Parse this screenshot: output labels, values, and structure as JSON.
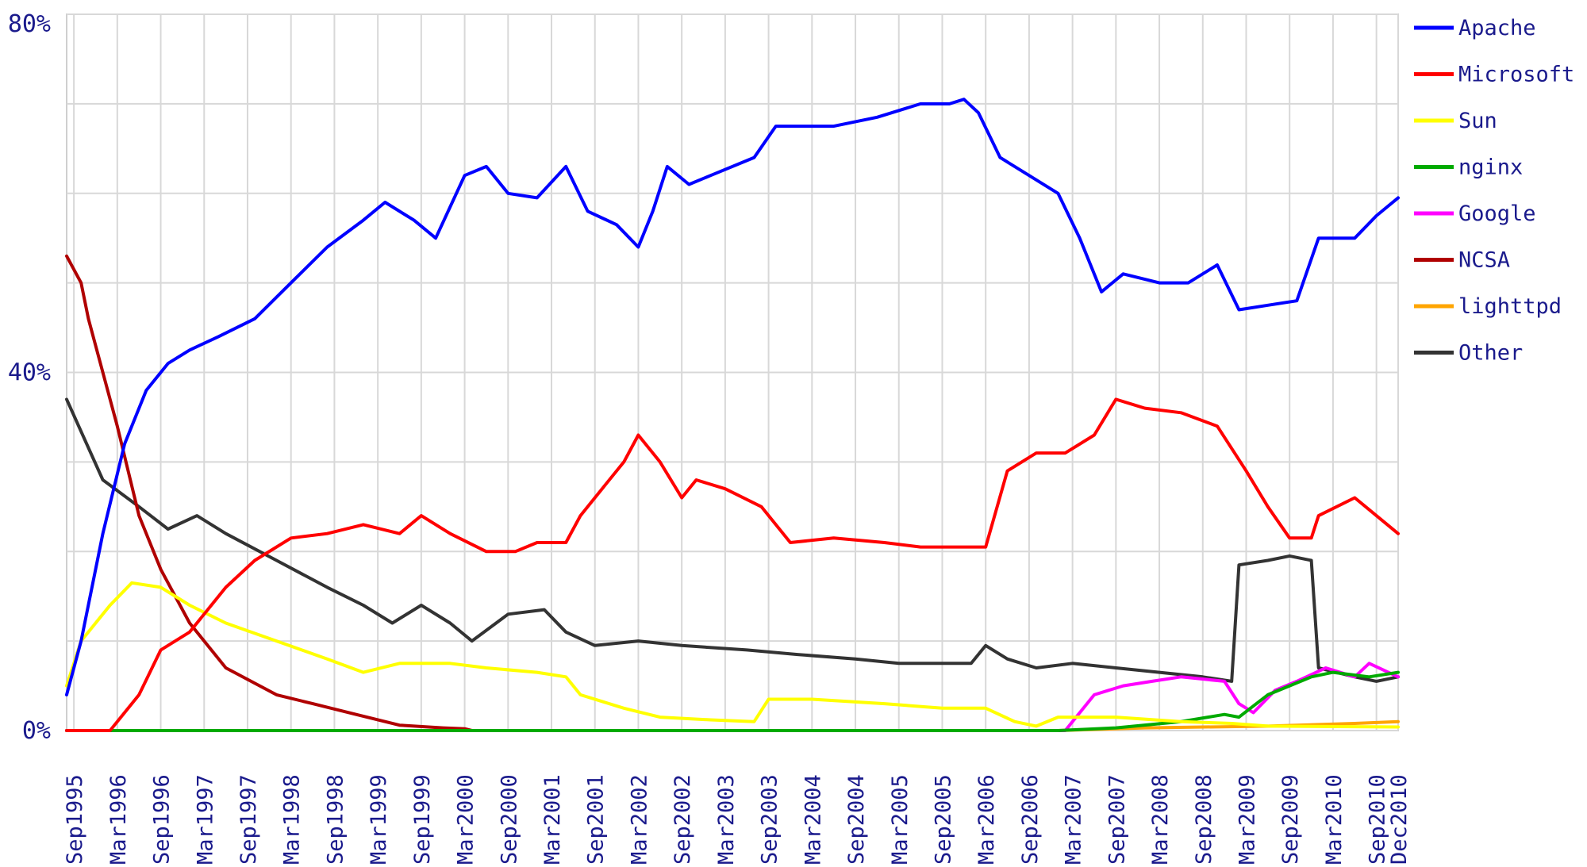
{
  "chart_data": {
    "type": "line",
    "title": "",
    "xlabel": "",
    "ylabel": "",
    "ylim": [
      0,
      80
    ],
    "y_ticks": [
      {
        "value": 0,
        "label": "0%"
      },
      {
        "value": 40,
        "label": "40%"
      },
      {
        "value": 80,
        "label": "80%"
      }
    ],
    "x_range": [
      "1995-08",
      "2010-12"
    ],
    "x_tick_labels": [
      {
        "date": "1995-09",
        "label": "Sep1995"
      },
      {
        "date": "1996-03",
        "label": "Mar1996"
      },
      {
        "date": "1996-09",
        "label": "Sep1996"
      },
      {
        "date": "1997-03",
        "label": "Mar1997"
      },
      {
        "date": "1997-09",
        "label": "Sep1997"
      },
      {
        "date": "1998-03",
        "label": "Mar1998"
      },
      {
        "date": "1998-09",
        "label": "Sep1998"
      },
      {
        "date": "1999-03",
        "label": "Mar1999"
      },
      {
        "date": "1999-09",
        "label": "Sep1999"
      },
      {
        "date": "2000-03",
        "label": "Mar2000"
      },
      {
        "date": "2000-09",
        "label": "Sep2000"
      },
      {
        "date": "2001-03",
        "label": "Mar2001"
      },
      {
        "date": "2001-09",
        "label": "Sep2001"
      },
      {
        "date": "2002-03",
        "label": "Mar2002"
      },
      {
        "date": "2002-09",
        "label": "Sep2002"
      },
      {
        "date": "2003-03",
        "label": "Mar2003"
      },
      {
        "date": "2003-09",
        "label": "Sep2003"
      },
      {
        "date": "2004-03",
        "label": "Mar2004"
      },
      {
        "date": "2004-09",
        "label": "Sep2004"
      },
      {
        "date": "2005-03",
        "label": "Mar2005"
      },
      {
        "date": "2005-09",
        "label": "Sep2005"
      },
      {
        "date": "2006-03",
        "label": "Mar2006"
      },
      {
        "date": "2006-09",
        "label": "Sep2006"
      },
      {
        "date": "2007-03",
        "label": "Mar2007"
      },
      {
        "date": "2007-09",
        "label": "Sep2007"
      },
      {
        "date": "2008-03",
        "label": "Mar2008"
      },
      {
        "date": "2008-09",
        "label": "Sep2008"
      },
      {
        "date": "2009-03",
        "label": "Mar2009"
      },
      {
        "date": "2009-09",
        "label": "Sep2009"
      },
      {
        "date": "2010-03",
        "label": "Mar2010"
      },
      {
        "date": "2010-09",
        "label": "Sep2010"
      },
      {
        "date": "2010-12",
        "label": "Dec2010"
      }
    ],
    "grid": true,
    "legend_position": "right",
    "series": [
      {
        "name": "Apache",
        "color": "#0000ff",
        "points": [
          [
            "1995-08",
            4
          ],
          [
            "1995-10",
            10
          ],
          [
            "1996-01",
            22
          ],
          [
            "1996-04",
            32
          ],
          [
            "1996-07",
            38
          ],
          [
            "1996-10",
            41
          ],
          [
            "1997-01",
            42.5
          ],
          [
            "1997-05",
            44
          ],
          [
            "1997-10",
            46
          ],
          [
            "1998-03",
            50
          ],
          [
            "1998-08",
            54
          ],
          [
            "1999-01",
            57
          ],
          [
            "1999-04",
            59
          ],
          [
            "1999-08",
            57
          ],
          [
            "1999-11",
            55
          ],
          [
            "2000-03",
            62
          ],
          [
            "2000-06",
            63
          ],
          [
            "2000-09",
            60
          ],
          [
            "2001-01",
            59.5
          ],
          [
            "2001-05",
            63
          ],
          [
            "2001-08",
            58
          ],
          [
            "2001-12",
            56.5
          ],
          [
            "2002-03",
            54
          ],
          [
            "2002-05",
            58
          ],
          [
            "2002-07",
            63
          ],
          [
            "2002-10",
            61
          ],
          [
            "2003-01",
            62
          ],
          [
            "2003-07",
            64
          ],
          [
            "2003-10",
            67.5
          ],
          [
            "2004-06",
            67.5
          ],
          [
            "2004-12",
            68.5
          ],
          [
            "2005-06",
            70
          ],
          [
            "2005-10",
            70
          ],
          [
            "2005-12",
            70.5
          ],
          [
            "2006-02",
            69
          ],
          [
            "2006-05",
            64
          ],
          [
            "2006-09",
            62
          ],
          [
            "2007-01",
            60
          ],
          [
            "2007-04",
            55
          ],
          [
            "2007-07",
            49
          ],
          [
            "2007-10",
            51
          ],
          [
            "2008-03",
            50
          ],
          [
            "2008-07",
            50
          ],
          [
            "2008-11",
            52
          ],
          [
            "2009-02",
            47
          ],
          [
            "2009-06",
            47.5
          ],
          [
            "2009-10",
            48
          ],
          [
            "2010-01",
            55
          ],
          [
            "2010-06",
            55
          ],
          [
            "2010-09",
            57.5
          ],
          [
            "2010-12",
            59.5
          ]
        ]
      },
      {
        "name": "Microsoft",
        "color": "#ff0000",
        "points": [
          [
            "1995-08",
            0
          ],
          [
            "1996-02",
            0
          ],
          [
            "1996-06",
            4
          ],
          [
            "1996-09",
            9
          ],
          [
            "1997-01",
            11
          ],
          [
            "1997-06",
            16
          ],
          [
            "1997-10",
            19
          ],
          [
            "1998-03",
            21.5
          ],
          [
            "1998-08",
            22
          ],
          [
            "1999-01",
            23
          ],
          [
            "1999-06",
            22
          ],
          [
            "1999-09",
            24
          ],
          [
            "2000-01",
            22
          ],
          [
            "2000-06",
            20
          ],
          [
            "2000-10",
            20
          ],
          [
            "2001-01",
            21
          ],
          [
            "2001-05",
            21
          ],
          [
            "2001-07",
            24
          ],
          [
            "2001-10",
            27
          ],
          [
            "2002-01",
            30
          ],
          [
            "2002-03",
            33
          ],
          [
            "2002-06",
            30
          ],
          [
            "2002-09",
            26
          ],
          [
            "2002-11",
            28
          ],
          [
            "2003-03",
            27
          ],
          [
            "2003-08",
            25
          ],
          [
            "2003-12",
            21
          ],
          [
            "2004-06",
            21.5
          ],
          [
            "2005-01",
            21
          ],
          [
            "2005-06",
            20.5
          ],
          [
            "2006-01",
            20.5
          ],
          [
            "2006-03",
            20.5
          ],
          [
            "2006-06",
            29
          ],
          [
            "2006-10",
            31
          ],
          [
            "2007-02",
            31
          ],
          [
            "2007-06",
            33
          ],
          [
            "2007-09",
            37
          ],
          [
            "2008-01",
            36
          ],
          [
            "2008-06",
            35.5
          ],
          [
            "2008-11",
            34
          ],
          [
            "2009-03",
            29
          ],
          [
            "2009-06",
            25
          ],
          [
            "2009-09",
            21.5
          ],
          [
            "2009-12",
            21.5
          ],
          [
            "2010-01",
            24
          ],
          [
            "2010-06",
            26
          ],
          [
            "2010-09",
            24
          ],
          [
            "2010-12",
            22
          ]
        ]
      },
      {
        "name": "Sun",
        "color": "#ffff00",
        "points": [
          [
            "1995-08",
            5
          ],
          [
            "1995-10",
            10
          ],
          [
            "1996-02",
            14
          ],
          [
            "1996-05",
            16.5
          ],
          [
            "1996-09",
            16
          ],
          [
            "1997-01",
            14
          ],
          [
            "1997-06",
            12
          ],
          [
            "1998-01",
            10
          ],
          [
            "1998-08",
            8
          ],
          [
            "1999-01",
            6.5
          ],
          [
            "1999-06",
            7.5
          ],
          [
            "2000-01",
            7.5
          ],
          [
            "2000-06",
            7
          ],
          [
            "2001-01",
            6.5
          ],
          [
            "2001-05",
            6
          ],
          [
            "2001-07",
            4
          ],
          [
            "2002-01",
            2.5
          ],
          [
            "2002-06",
            1.5
          ],
          [
            "2003-01",
            1.2
          ],
          [
            "2003-07",
            1
          ],
          [
            "2003-09",
            3.5
          ],
          [
            "2004-03",
            3.5
          ],
          [
            "2005-01",
            3
          ],
          [
            "2005-09",
            2.5
          ],
          [
            "2006-03",
            2.5
          ],
          [
            "2006-07",
            1
          ],
          [
            "2006-10",
            0.5
          ],
          [
            "2007-01",
            1.5
          ],
          [
            "2007-09",
            1.5
          ],
          [
            "2008-06",
            1
          ],
          [
            "2009-01",
            0.8
          ],
          [
            "2009-06",
            0.5
          ],
          [
            "2010-12",
            0.4
          ]
        ]
      },
      {
        "name": "nginx",
        "color": "#00aa00",
        "points": [
          [
            "1995-08",
            0
          ],
          [
            "2007-01",
            0
          ],
          [
            "2007-09",
            0.3
          ],
          [
            "2008-06",
            1
          ],
          [
            "2008-12",
            1.8
          ],
          [
            "2009-02",
            1.5
          ],
          [
            "2009-06",
            4
          ],
          [
            "2009-09",
            5
          ],
          [
            "2009-12",
            6
          ],
          [
            "2010-03",
            6.5
          ],
          [
            "2010-08",
            6
          ],
          [
            "2010-12",
            6.5
          ]
        ]
      },
      {
        "name": "Google",
        "color": "#ff00ff",
        "points": [
          [
            "1995-08",
            0
          ],
          [
            "2007-02",
            0
          ],
          [
            "2007-06",
            4
          ],
          [
            "2007-10",
            5
          ],
          [
            "2008-02",
            5.5
          ],
          [
            "2008-06",
            6
          ],
          [
            "2008-12",
            5.5
          ],
          [
            "2009-02",
            3
          ],
          [
            "2009-04",
            2
          ],
          [
            "2009-07",
            4.5
          ],
          [
            "2009-10",
            5.5
          ],
          [
            "2010-02",
            7
          ],
          [
            "2010-06",
            6
          ],
          [
            "2010-08",
            7.5
          ],
          [
            "2010-12",
            6
          ]
        ]
      },
      {
        "name": "NCSA",
        "color": "#b00000",
        "points": [
          [
            "1995-08",
            53
          ],
          [
            "1995-10",
            50
          ],
          [
            "1995-11",
            46
          ],
          [
            "1996-01",
            40
          ],
          [
            "1996-03",
            34
          ],
          [
            "1996-06",
            24
          ],
          [
            "1996-09",
            18
          ],
          [
            "1997-01",
            12
          ],
          [
            "1997-06",
            7
          ],
          [
            "1998-01",
            4
          ],
          [
            "1998-06",
            3
          ],
          [
            "1998-12",
            1.8
          ],
          [
            "1999-06",
            0.6
          ],
          [
            "1999-12",
            0.3
          ],
          [
            "2000-03",
            0.2
          ],
          [
            "2000-04",
            0
          ]
        ]
      },
      {
        "name": "lighttpd",
        "color": "#ffa500",
        "points": [
          [
            "1995-08",
            0
          ],
          [
            "2007-01",
            0
          ],
          [
            "2008-01",
            0.3
          ],
          [
            "2009-06",
            0.5
          ],
          [
            "2010-06",
            0.8
          ],
          [
            "2010-12",
            1
          ]
        ]
      },
      {
        "name": "Other",
        "color": "#333333",
        "points": [
          [
            "1995-08",
            37
          ],
          [
            "1996-01",
            28
          ],
          [
            "1996-06",
            25
          ],
          [
            "1996-10",
            22.5
          ],
          [
            "1997-02",
            24
          ],
          [
            "1997-06",
            22
          ],
          [
            "1998-01",
            19
          ],
          [
            "1998-08",
            16
          ],
          [
            "1999-01",
            14
          ],
          [
            "1999-05",
            12
          ],
          [
            "1999-09",
            14
          ],
          [
            "2000-01",
            12
          ],
          [
            "2000-04",
            10
          ],
          [
            "2000-09",
            13
          ],
          [
            "2001-02",
            13.5
          ],
          [
            "2001-05",
            11
          ],
          [
            "2001-09",
            9.5
          ],
          [
            "2002-03",
            10
          ],
          [
            "2002-09",
            9.5
          ],
          [
            "2003-06",
            9
          ],
          [
            "2004-01",
            8.5
          ],
          [
            "2004-09",
            8
          ],
          [
            "2005-03",
            7.5
          ],
          [
            "2005-09",
            7.5
          ],
          [
            "2006-01",
            7.5
          ],
          [
            "2006-03",
            9.5
          ],
          [
            "2006-06",
            8
          ],
          [
            "2006-10",
            7
          ],
          [
            "2007-03",
            7.5
          ],
          [
            "2007-09",
            7
          ],
          [
            "2008-03",
            6.5
          ],
          [
            "2008-09",
            6
          ],
          [
            "2009-01",
            5.5
          ],
          [
            "2009-02",
            18.5
          ],
          [
            "2009-06",
            19
          ],
          [
            "2009-09",
            19.5
          ],
          [
            "2009-12",
            19
          ],
          [
            "2010-01",
            7
          ],
          [
            "2010-06",
            6
          ],
          [
            "2010-09",
            5.5
          ],
          [
            "2010-12",
            6
          ]
        ]
      }
    ]
  }
}
